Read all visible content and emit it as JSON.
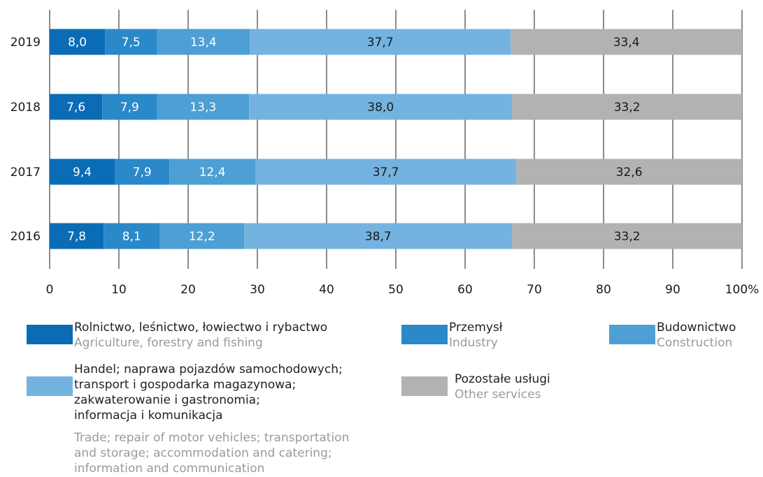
{
  "chart_data": {
    "type": "bar",
    "orientation": "horizontal",
    "stacked": true,
    "categories": [
      "2019",
      "2018",
      "2017",
      "2016"
    ],
    "series": [
      {
        "name": "Rolnictwo, leśnictwo, łowiectwo i rybactwo / Agriculture, forestry and fishing",
        "color": "#0a6cb5",
        "values": [
          8.0,
          7.6,
          9.4,
          7.8
        ],
        "labels": [
          "8,0",
          "7,6",
          "9,4",
          "7,8"
        ],
        "label_color": "#ffffff"
      },
      {
        "name": "Przemysł / Industry",
        "color": "#2b88c9",
        "values": [
          7.5,
          7.9,
          7.9,
          8.1
        ],
        "labels": [
          "7,5",
          "7,9",
          "7,9",
          "8,1"
        ],
        "label_color": "#ffffff"
      },
      {
        "name": "Budownictwo / Construction",
        "color": "#4d9fd4",
        "values": [
          13.4,
          13.3,
          12.4,
          12.2
        ],
        "labels": [
          "13,4",
          "13,3",
          "12,4",
          "12,2"
        ],
        "label_color": "#ffffff"
      },
      {
        "name": "Handel; naprawa pojazdów samochodowych; transport i gospodarka magazynowa; zakwaterowanie i gastronomia; informacja i komunikacja / Trade; repair of motor vehicles; transportation and storage; accommodation and catering; information and communication",
        "color": "#74b3df",
        "values": [
          37.7,
          38.0,
          37.7,
          38.7
        ],
        "labels": [
          "37,7",
          "38,0",
          "37,7",
          "38,7"
        ],
        "label_color": "#1a1a1a"
      },
      {
        "name": "Pozostałe usługi / Other services",
        "color": "#b2b2b2",
        "values": [
          33.4,
          33.2,
          32.6,
          33.2
        ],
        "labels": [
          "33,4",
          "33,2",
          "32,6",
          "33,2"
        ],
        "label_color": "#1a1a1a"
      }
    ],
    "x_ticks": [
      "0",
      "10",
      "20",
      "30",
      "40",
      "50",
      "60",
      "70",
      "80",
      "90",
      "100%"
    ],
    "xlim": [
      0,
      100
    ],
    "grid": true,
    "legend_position": "bottom"
  },
  "legend": [
    {
      "pl": [
        "Rolnictwo, leśnictwo, łowiectwo i rybactwo"
      ],
      "en": [
        "Agriculture, forestry and fishing"
      ],
      "color": "#0a6cb5"
    },
    {
      "pl": [
        "Przemysł"
      ],
      "en": [
        "Industry"
      ],
      "color": "#2b88c9"
    },
    {
      "pl": [
        "Budownictwo"
      ],
      "en": [
        "Construction"
      ],
      "color": "#4d9fd4"
    },
    {
      "pl": [
        "Handel; naprawa pojazdów samochodowych;",
        "transport i gospodarka magazynowa;",
        "zakwaterowanie i gastronomia;",
        "informacja i komunikacja"
      ],
      "en": [
        "Trade; repair of motor vehicles; transportation",
        "and storage; accommodation and catering;",
        "information and communication"
      ],
      "color": "#74b3df"
    },
    {
      "pl": [
        "Pozostałe usługi"
      ],
      "en": [
        "Other services"
      ],
      "color": "#b2b2b2"
    }
  ]
}
